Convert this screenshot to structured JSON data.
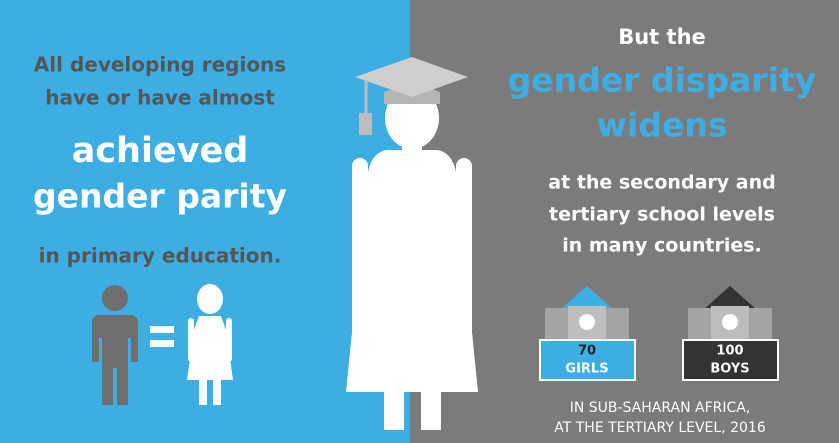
{
  "left": {
    "intro": [
      "All developing regions",
      "have or have almost"
    ],
    "headline": [
      "achieved",
      "gender parity"
    ],
    "outro": "in primary education."
  },
  "right": {
    "intro": "But the",
    "headline": [
      "gender disparity",
      "widens"
    ],
    "body": [
      "at the secondary and",
      "tertiary school levels",
      "in many countries."
    ],
    "schools": [
      {
        "number": 70,
        "label": "GIRLS"
      },
      {
        "number": 100,
        "label": "BOYS"
      }
    ],
    "footnote": [
      "IN SUB-SAHARAN AFRICA,",
      "AT THE TERTIARY LEVEL, 2016"
    ]
  }
}
